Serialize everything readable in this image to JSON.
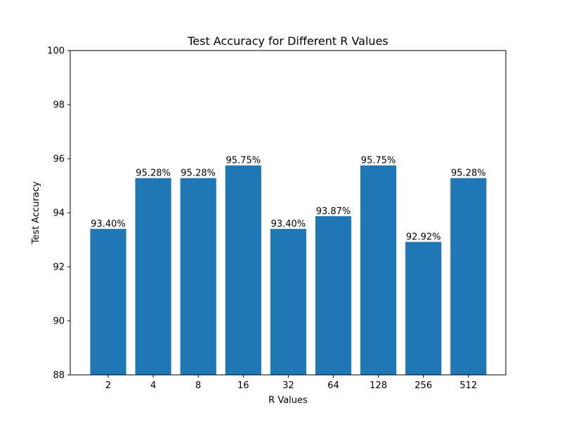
{
  "chart_data": {
    "type": "bar",
    "title": "Test Accuracy for Different R Values",
    "xlabel": "R Values",
    "ylabel": "Test Accuracy",
    "categories": [
      "2",
      "4",
      "8",
      "16",
      "32",
      "64",
      "128",
      "256",
      "512"
    ],
    "values": [
      93.4,
      95.28,
      95.28,
      95.75,
      93.4,
      93.87,
      95.75,
      92.92,
      95.28
    ],
    "data_labels": [
      "93.40%",
      "95.28%",
      "95.28%",
      "95.75%",
      "93.40%",
      "93.87%",
      "95.75%",
      "92.92%",
      "95.28%"
    ],
    "ylim": [
      88,
      100
    ],
    "yticks": [
      88,
      90,
      92,
      94,
      96,
      98,
      100
    ],
    "bar_color": "#1f77b4",
    "grid": false,
    "legend": "none"
  }
}
